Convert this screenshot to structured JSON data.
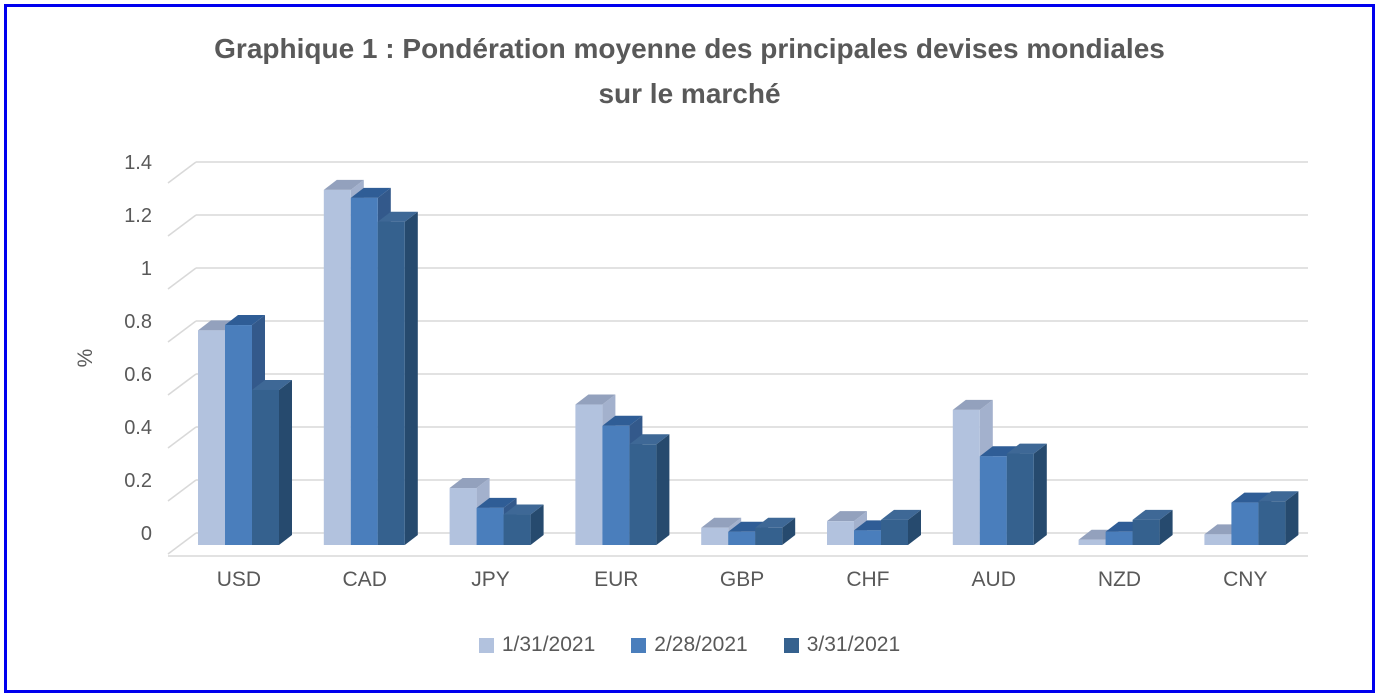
{
  "title": {
    "line1": "Graphique 1 : Pondération moyenne des principales devises mondiales",
    "line2": "sur le marché"
  },
  "chart_data": {
    "type": "bar",
    "style": "3d-clustered-column",
    "title": "Graphique 1 : Pondération moyenne des principales devises mondiales sur le marché",
    "xlabel": "",
    "ylabel": "%",
    "ylim": [
      0,
      1.4
    ],
    "y_ticks": [
      "0",
      "0.2",
      "0.4",
      "0.6",
      "0.8",
      "1",
      "1.2",
      "1.4"
    ],
    "grid": true,
    "legend_position": "bottom",
    "categories": [
      "USD",
      "CAD",
      "JPY",
      "EUR",
      "GBP",
      "CHF",
      "AUD",
      "NZD",
      "CNY"
    ],
    "series": [
      {
        "name": "1/31/2021",
        "color": "#b2c2de",
        "top_color": "#93a1bd",
        "side_color": "#a3b1cd",
        "values": [
          0.81,
          1.34,
          0.215,
          0.53,
          0.065,
          0.09,
          0.51,
          0.02,
          0.04
        ]
      },
      {
        "name": "2/28/2021",
        "color": "#4a7ebc",
        "top_color": "#2f5d96",
        "side_color": "#33598b",
        "values": [
          0.83,
          1.31,
          0.14,
          0.45,
          0.05,
          0.055,
          0.335,
          0.05,
          0.16
        ]
      },
      {
        "name": "3/31/2021",
        "color": "#35618e",
        "top_color": "#3e6896",
        "side_color": "#264a6e",
        "values": [
          0.585,
          1.22,
          0.115,
          0.38,
          0.065,
          0.095,
          0.345,
          0.095,
          0.165
        ]
      }
    ],
    "colors": {
      "gridline": "#d9d9d9",
      "text": "#595959",
      "frame_border": "#0000ee",
      "background": "#ffffff"
    }
  }
}
